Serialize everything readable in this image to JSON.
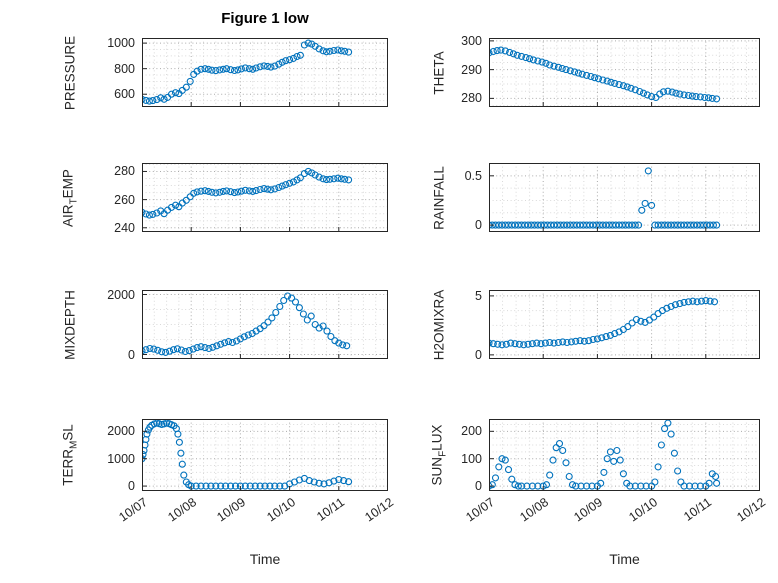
{
  "figure": {
    "title": "Figure 1 low",
    "xlabel": "Time",
    "colors": {
      "marker": "#0072BD",
      "axis": "#262626",
      "grid_major": "#ababab",
      "grid_minor": "#d9d9d9"
    }
  },
  "x_axis": {
    "tick_values": [
      0,
      1,
      2,
      3,
      4,
      5
    ],
    "tick_labels": [
      "10/07",
      "10/08",
      "10/09",
      "10/10",
      "10/11",
      "10/12"
    ]
  },
  "chart_data": [
    {
      "type": "scatter",
      "name": "PRESSURE",
      "ylabel_parts": [
        {
          "text": "PRESSURE",
          "sub": false
        }
      ],
      "yticks": [
        600,
        800,
        1000
      ],
      "ylim": [
        500,
        1040
      ],
      "xlim": [
        0,
        5
      ],
      "show_xtick_labels": false,
      "x": [
        0,
        0.08,
        0.15,
        0.22,
        0.3,
        0.38,
        0.45,
        0.52,
        0.6,
        0.68,
        0.75,
        0.82,
        0.9,
        0.98,
        1.05,
        1.12,
        1.2,
        1.28,
        1.35,
        1.42,
        1.5,
        1.58,
        1.65,
        1.72,
        1.8,
        1.88,
        1.95,
        2.02,
        2.1,
        2.18,
        2.25,
        2.32,
        2.4,
        2.48,
        2.55,
        2.62,
        2.7,
        2.78,
        2.85,
        2.92,
        3.0,
        3.08,
        3.15,
        3.22,
        3.3,
        3.38,
        3.45,
        3.52,
        3.6,
        3.68,
        3.75,
        3.82,
        3.9,
        3.98,
        4.05,
        4.12,
        4.2
      ],
      "y": [
        560,
        552,
        546,
        550,
        558,
        572,
        560,
        575,
        600,
        612,
        605,
        630,
        655,
        700,
        755,
        780,
        795,
        800,
        795,
        788,
        785,
        790,
        795,
        800,
        792,
        786,
        790,
        798,
        806,
        800,
        795,
        805,
        815,
        822,
        818,
        812,
        820,
        835,
        850,
        862,
        870,
        880,
        895,
        905,
        985,
        1000,
        992,
        975,
        955,
        940,
        932,
        936,
        942,
        946,
        940,
        936,
        930
      ]
    },
    {
      "type": "scatter",
      "name": "THETA",
      "ylabel_parts": [
        {
          "text": "THETA",
          "sub": false
        }
      ],
      "yticks": [
        280,
        290,
        300
      ],
      "ylim": [
        277,
        301
      ],
      "xlim": [
        0,
        5
      ],
      "show_xtick_labels": false,
      "x": [
        0,
        0.08,
        0.15,
        0.22,
        0.3,
        0.38,
        0.45,
        0.52,
        0.6,
        0.68,
        0.75,
        0.82,
        0.9,
        0.98,
        1.05,
        1.12,
        1.2,
        1.28,
        1.35,
        1.42,
        1.5,
        1.58,
        1.65,
        1.72,
        1.8,
        1.88,
        1.95,
        2.02,
        2.1,
        2.18,
        2.25,
        2.32,
        2.4,
        2.48,
        2.55,
        2.62,
        2.7,
        2.78,
        2.85,
        2.92,
        3.0,
        3.08,
        3.15,
        3.22,
        3.3,
        3.38,
        3.45,
        3.52,
        3.6,
        3.68,
        3.75,
        3.82,
        3.9,
        3.98,
        4.05,
        4.12,
        4.2
      ],
      "y": [
        295.8,
        296.3,
        296.6,
        296.8,
        296.5,
        296.0,
        295.5,
        295.0,
        294.6,
        294.2,
        293.8,
        293.4,
        293.0,
        292.6,
        292.2,
        291.6,
        291.2,
        290.8,
        290.4,
        290.0,
        289.6,
        289.2,
        288.8,
        288.4,
        288.0,
        287.6,
        287.2,
        286.8,
        286.4,
        286.0,
        285.6,
        285.2,
        284.8,
        284.4,
        284.0,
        283.5,
        283.0,
        282.4,
        281.8,
        281.2,
        280.6,
        280.3,
        281.5,
        282.3,
        282.5,
        282.2,
        281.8,
        281.5,
        281.2,
        281.0,
        280.8,
        280.6,
        280.5,
        280.3,
        280.2,
        280.0,
        279.8
      ]
    },
    {
      "type": "scatter",
      "name": "AIR_TEMP",
      "ylabel_parts": [
        {
          "text": "AIR",
          "sub": false
        },
        {
          "text": "T",
          "sub": true
        },
        {
          "text": "EMP",
          "sub": false
        }
      ],
      "yticks": [
        240,
        260,
        280
      ],
      "ylim": [
        237,
        286
      ],
      "xlim": [
        0,
        5
      ],
      "show_xtick_labels": false,
      "x": [
        0,
        0.08,
        0.15,
        0.22,
        0.3,
        0.38,
        0.45,
        0.52,
        0.6,
        0.68,
        0.75,
        0.82,
        0.9,
        0.98,
        1.05,
        1.12,
        1.2,
        1.28,
        1.35,
        1.42,
        1.5,
        1.58,
        1.65,
        1.72,
        1.8,
        1.88,
        1.95,
        2.02,
        2.1,
        2.18,
        2.25,
        2.32,
        2.4,
        2.48,
        2.55,
        2.62,
        2.7,
        2.78,
        2.85,
        2.92,
        3.0,
        3.08,
        3.15,
        3.22,
        3.3,
        3.38,
        3.45,
        3.52,
        3.6,
        3.68,
        3.75,
        3.82,
        3.9,
        3.98,
        4.05,
        4.12,
        4.2
      ],
      "y": [
        251,
        249.8,
        249,
        249.5,
        250.5,
        252,
        250,
        252.5,
        254.5,
        256,
        255,
        257.5,
        259.5,
        262,
        264.5,
        265.5,
        266,
        266.3,
        265.8,
        265.2,
        264.8,
        265.2,
        265.8,
        266.2,
        265.6,
        265.0,
        265.4,
        266.0,
        266.6,
        266.2,
        265.8,
        266.4,
        267.2,
        267.8,
        267.4,
        267.0,
        267.6,
        268.6,
        269.6,
        270.6,
        271.6,
        272.6,
        274,
        275.5,
        278.5,
        280,
        279,
        277.5,
        276,
        274.8,
        274.2,
        274.4,
        274.8,
        275.2,
        274.8,
        274.4,
        274.0
      ]
    },
    {
      "type": "scatter",
      "name": "RAINFALL",
      "ylabel_parts": [
        {
          "text": "RAINFALL",
          "sub": false
        }
      ],
      "yticks": [
        0,
        0.5
      ],
      "ylim": [
        -0.07,
        0.63
      ],
      "xlim": [
        0,
        5
      ],
      "show_xtick_labels": false,
      "x": [
        0,
        0.06,
        0.12,
        0.18,
        0.24,
        0.3,
        0.36,
        0.42,
        0.48,
        0.54,
        0.6,
        0.66,
        0.72,
        0.78,
        0.84,
        0.9,
        0.96,
        1.02,
        1.08,
        1.14,
        1.2,
        1.26,
        1.32,
        1.38,
        1.44,
        1.5,
        1.56,
        1.62,
        1.68,
        1.74,
        1.8,
        1.86,
        1.92,
        1.98,
        2.04,
        2.1,
        2.16,
        2.22,
        2.28,
        2.34,
        2.4,
        2.46,
        2.52,
        2.58,
        2.64,
        2.7,
        2.76,
        2.82,
        2.88,
        2.94,
        3.0,
        3.06,
        3.12,
        3.18,
        3.24,
        3.3,
        3.36,
        3.42,
        3.48,
        3.54,
        3.6,
        3.66,
        3.72,
        3.78,
        3.84,
        3.9,
        3.96,
        4.02,
        4.08,
        4.14,
        4.2
      ],
      "y": [
        0,
        0,
        0,
        0,
        0,
        0,
        0,
        0,
        0,
        0,
        0,
        0,
        0,
        0,
        0,
        0,
        0,
        0,
        0,
        0,
        0,
        0,
        0,
        0,
        0,
        0,
        0,
        0,
        0,
        0,
        0,
        0,
        0,
        0,
        0,
        0,
        0,
        0,
        0,
        0,
        0,
        0,
        0,
        0,
        0,
        0,
        0,
        0.15,
        0.22,
        0.55,
        0.2,
        0,
        0,
        0,
        0,
        0,
        0,
        0,
        0,
        0,
        0,
        0,
        0,
        0,
        0,
        0,
        0,
        0,
        0,
        0,
        0
      ]
    },
    {
      "type": "scatter",
      "name": "MIXDEPTH",
      "ylabel_parts": [
        {
          "text": "MIXDEPTH",
          "sub": false
        }
      ],
      "yticks": [
        0,
        2000
      ],
      "ylim": [
        -150,
        2150
      ],
      "xlim": [
        0,
        5
      ],
      "show_xtick_labels": false,
      "x": [
        0,
        0.08,
        0.16,
        0.24,
        0.32,
        0.4,
        0.48,
        0.56,
        0.64,
        0.72,
        0.8,
        0.88,
        0.96,
        1.04,
        1.12,
        1.2,
        1.28,
        1.36,
        1.44,
        1.52,
        1.6,
        1.68,
        1.76,
        1.84,
        1.92,
        2.0,
        2.08,
        2.16,
        2.24,
        2.32,
        2.4,
        2.48,
        2.56,
        2.64,
        2.72,
        2.8,
        2.88,
        2.96,
        3.04,
        3.12,
        3.2,
        3.28,
        3.36,
        3.44,
        3.52,
        3.6,
        3.68,
        3.76,
        3.84,
        3.92,
        4.0,
        4.08,
        4.16
      ],
      "y": [
        120,
        160,
        200,
        180,
        140,
        90,
        70,
        110,
        160,
        190,
        150,
        100,
        130,
        180,
        230,
        260,
        230,
        200,
        240,
        290,
        340,
        390,
        430,
        400,
        450,
        520,
        590,
        650,
        700,
        780,
        860,
        960,
        1080,
        1220,
        1400,
        1600,
        1800,
        1950,
        1880,
        1750,
        1560,
        1350,
        1150,
        1280,
        1000,
        880,
        950,
        780,
        600,
        460,
        380,
        320,
        290
      ]
    },
    {
      "type": "scatter",
      "name": "H2OMIXRA",
      "ylabel_parts": [
        {
          "text": "H2OMIXRA",
          "sub": false
        }
      ],
      "yticks": [
        0,
        5
      ],
      "ylim": [
        -0.35,
        5.5
      ],
      "xlim": [
        0,
        5
      ],
      "show_xtick_labels": false,
      "x": [
        0,
        0.08,
        0.16,
        0.24,
        0.32,
        0.4,
        0.48,
        0.56,
        0.64,
        0.72,
        0.8,
        0.88,
        0.96,
        1.04,
        1.12,
        1.2,
        1.28,
        1.36,
        1.44,
        1.52,
        1.6,
        1.68,
        1.76,
        1.84,
        1.92,
        2.0,
        2.08,
        2.16,
        2.24,
        2.32,
        2.4,
        2.48,
        2.56,
        2.64,
        2.72,
        2.8,
        2.88,
        2.96,
        3.04,
        3.12,
        3.2,
        3.28,
        3.36,
        3.44,
        3.52,
        3.6,
        3.68,
        3.76,
        3.84,
        3.92,
        4.0,
        4.08,
        4.16
      ],
      "y": [
        1.0,
        0.95,
        0.9,
        0.85,
        0.9,
        1.0,
        0.95,
        0.9,
        0.85,
        0.9,
        0.95,
        1.0,
        0.95,
        1.0,
        1.05,
        1.0,
        1.05,
        1.1,
        1.05,
        1.1,
        1.15,
        1.2,
        1.15,
        1.2,
        1.3,
        1.35,
        1.45,
        1.55,
        1.65,
        1.8,
        1.95,
        2.15,
        2.4,
        2.7,
        3.0,
        2.85,
        2.75,
        2.95,
        3.2,
        3.5,
        3.75,
        3.95,
        4.1,
        4.25,
        4.35,
        4.45,
        4.5,
        4.55,
        4.5,
        4.55,
        4.6,
        4.55,
        4.5
      ]
    },
    {
      "type": "scatter",
      "name": "TERR_MSL",
      "ylabel_parts": [
        {
          "text": "TERR",
          "sub": false
        },
        {
          "text": "M",
          "sub": true
        },
        {
          "text": "SL",
          "sub": false
        }
      ],
      "yticks": [
        0,
        1000,
        2000
      ],
      "ylim": [
        -180,
        2450
      ],
      "xlim": [
        0,
        5
      ],
      "show_xtick_labels": true,
      "x": [
        0,
        0.02,
        0.04,
        0.06,
        0.08,
        0.1,
        0.13,
        0.16,
        0.2,
        0.25,
        0.3,
        0.35,
        0.4,
        0.45,
        0.5,
        0.55,
        0.6,
        0.65,
        0.7,
        0.73,
        0.76,
        0.79,
        0.82,
        0.85,
        0.9,
        0.95,
        1.0,
        1.1,
        1.2,
        1.3,
        1.4,
        1.5,
        1.6,
        1.7,
        1.8,
        1.9,
        2.0,
        2.1,
        2.2,
        2.3,
        2.4,
        2.5,
        2.6,
        2.7,
        2.8,
        2.9,
        3.0,
        3.1,
        3.2,
        3.3,
        3.4,
        3.5,
        3.6,
        3.7,
        3.8,
        3.9,
        4.0,
        4.1,
        4.2
      ],
      "y": [
        1000,
        1150,
        1300,
        1500,
        1700,
        1900,
        2050,
        2150,
        2220,
        2270,
        2300,
        2280,
        2250,
        2270,
        2300,
        2280,
        2240,
        2200,
        2100,
        1900,
        1600,
        1200,
        800,
        400,
        150,
        50,
        0,
        0,
        0,
        0,
        0,
        0,
        0,
        0,
        0,
        0,
        0,
        0,
        0,
        0,
        0,
        0,
        0,
        0,
        0,
        0,
        80,
        150,
        220,
        280,
        200,
        150,
        100,
        80,
        120,
        180,
        240,
        200,
        160
      ]
    },
    {
      "type": "scatter",
      "name": "SUN_FLUX",
      "ylabel_parts": [
        {
          "text": "SUN",
          "sub": false
        },
        {
          "text": "F",
          "sub": true
        },
        {
          "text": "LUX",
          "sub": false
        }
      ],
      "yticks": [
        0,
        100,
        200
      ],
      "ylim": [
        -18,
        245
      ],
      "xlim": [
        0,
        5
      ],
      "show_xtick_labels": true,
      "x": [
        0,
        0.06,
        0.12,
        0.18,
        0.24,
        0.3,
        0.36,
        0.42,
        0.48,
        0.54,
        0.6,
        0.7,
        0.8,
        0.9,
        1.0,
        1.06,
        1.12,
        1.18,
        1.24,
        1.3,
        1.36,
        1.42,
        1.48,
        1.54,
        1.6,
        1.7,
        1.8,
        1.9,
        2.0,
        2.06,
        2.12,
        2.18,
        2.24,
        2.3,
        2.36,
        2.42,
        2.48,
        2.54,
        2.6,
        2.7,
        2.8,
        2.9,
        3.0,
        3.06,
        3.12,
        3.18,
        3.24,
        3.3,
        3.36,
        3.42,
        3.48,
        3.54,
        3.6,
        3.7,
        3.8,
        3.9,
        4.0,
        4.06,
        4.12,
        4.18,
        4.2
      ],
      "y": [
        0,
        5,
        30,
        70,
        100,
        95,
        60,
        25,
        5,
        0,
        0,
        0,
        0,
        0,
        0,
        5,
        40,
        95,
        140,
        155,
        130,
        85,
        35,
        5,
        0,
        0,
        0,
        0,
        0,
        10,
        50,
        100,
        125,
        90,
        130,
        95,
        45,
        10,
        0,
        0,
        0,
        0,
        0,
        15,
        70,
        150,
        210,
        230,
        190,
        120,
        55,
        15,
        0,
        0,
        0,
        0,
        0,
        10,
        45,
        35,
        10
      ]
    }
  ]
}
